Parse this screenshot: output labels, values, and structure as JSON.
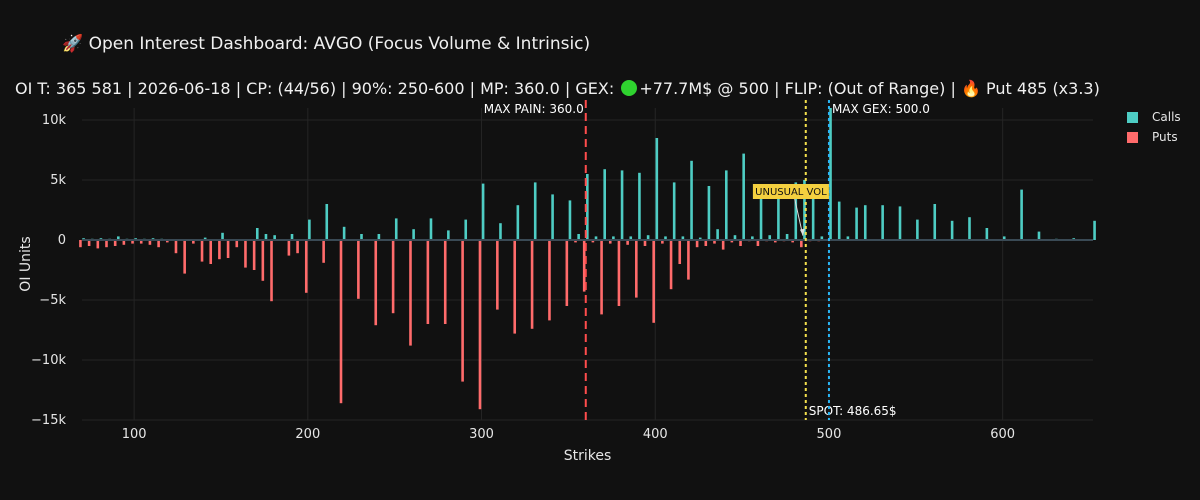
{
  "title": "🚀 Open Interest Dashboard: AVGO (Focus Volume & Intrinsic)",
  "subtitle": {
    "before": "OI T: 365 581 | 2026-06-18 | CP: (44/56) | 90%: 250-600 | MP: 360.0 | GEX:",
    "after": "+77.7M$ @ 500 | FLIP: (Out of Range) | 🔥 Put 485 (x3.3)"
  },
  "colors": {
    "calls": "#4ecdc4",
    "puts": "#ff6b6b",
    "max_pain": "#ff4d4d",
    "spot": "#f4e04d",
    "max_gex": "#29b6f6",
    "unusual_bg": "#f4d03f"
  },
  "legend": [
    {
      "label": "Calls",
      "color": "#4ecdc4"
    },
    {
      "label": "Puts",
      "color": "#ff6b6b"
    }
  ],
  "chart_data": {
    "type": "bar",
    "xlabel": "Strikes",
    "ylabel": "OI Units",
    "xlim": [
      70,
      652
    ],
    "ylim": [
      -15000,
      11000
    ],
    "xticks": [
      100,
      200,
      300,
      400,
      500,
      600
    ],
    "yticks": [
      {
        "v": 10000,
        "label": "10k"
      },
      {
        "v": 5000,
        "label": "5k"
      },
      {
        "v": 0,
        "label": "0"
      },
      {
        "v": -5000,
        "label": "−5k"
      },
      {
        "v": -10000,
        "label": "−10k"
      },
      {
        "v": -15000,
        "label": "−15k"
      }
    ],
    "grid": true,
    "legend_position": "top-right",
    "series": [
      {
        "name": "Calls",
        "points": [
          [
            70,
            150
          ],
          [
            75,
            100
          ],
          [
            80,
            150
          ],
          [
            85,
            100
          ],
          [
            90,
            300
          ],
          [
            95,
            100
          ],
          [
            100,
            150
          ],
          [
            105,
            100
          ],
          [
            110,
            150
          ],
          [
            115,
            100
          ],
          [
            140,
            200
          ],
          [
            150,
            600
          ],
          [
            170,
            1000
          ],
          [
            175,
            500
          ],
          [
            180,
            400
          ],
          [
            190,
            500
          ],
          [
            200,
            1700
          ],
          [
            210,
            3000
          ],
          [
            220,
            1100
          ],
          [
            230,
            500
          ],
          [
            240,
            500
          ],
          [
            250,
            1800
          ],
          [
            260,
            900
          ],
          [
            270,
            1800
          ],
          [
            280,
            800
          ],
          [
            290,
            1700
          ],
          [
            300,
            4700
          ],
          [
            310,
            1400
          ],
          [
            320,
            2900
          ],
          [
            330,
            4800
          ],
          [
            340,
            3800
          ],
          [
            350,
            3300
          ],
          [
            355,
            500
          ],
          [
            360,
            5500
          ],
          [
            365,
            300
          ],
          [
            370,
            5900
          ],
          [
            375,
            300
          ],
          [
            380,
            5800
          ],
          [
            385,
            300
          ],
          [
            390,
            5600
          ],
          [
            395,
            400
          ],
          [
            400,
            8500
          ],
          [
            405,
            300
          ],
          [
            410,
            4800
          ],
          [
            415,
            300
          ],
          [
            420,
            6600
          ],
          [
            425,
            200
          ],
          [
            430,
            4500
          ],
          [
            435,
            900
          ],
          [
            440,
            5800
          ],
          [
            445,
            400
          ],
          [
            450,
            7200
          ],
          [
            455,
            300
          ],
          [
            460,
            4600
          ],
          [
            465,
            400
          ],
          [
            470,
            4000
          ],
          [
            475,
            500
          ],
          [
            480,
            4800
          ],
          [
            485,
            5000
          ],
          [
            490,
            4200
          ],
          [
            495,
            300
          ],
          [
            500,
            11000
          ],
          [
            505,
            3200
          ],
          [
            510,
            300
          ],
          [
            515,
            2700
          ],
          [
            520,
            2900
          ],
          [
            530,
            2900
          ],
          [
            540,
            2800
          ],
          [
            550,
            1700
          ],
          [
            560,
            3000
          ],
          [
            570,
            1600
          ],
          [
            580,
            1900
          ],
          [
            590,
            1000
          ],
          [
            600,
            300
          ],
          [
            610,
            4200
          ],
          [
            620,
            700
          ],
          [
            630,
            100
          ],
          [
            640,
            150
          ],
          [
            652,
            1600
          ]
        ]
      },
      {
        "name": "Puts",
        "points": [
          [
            70,
            -600
          ],
          [
            75,
            -500
          ],
          [
            80,
            -700
          ],
          [
            85,
            -600
          ],
          [
            90,
            -500
          ],
          [
            95,
            -400
          ],
          [
            100,
            -300
          ],
          [
            105,
            -300
          ],
          [
            110,
            -400
          ],
          [
            115,
            -600
          ],
          [
            120,
            -200
          ],
          [
            125,
            -1100
          ],
          [
            130,
            -2800
          ],
          [
            135,
            -300
          ],
          [
            140,
            -1800
          ],
          [
            145,
            -2000
          ],
          [
            150,
            -1600
          ],
          [
            155,
            -1500
          ],
          [
            160,
            -600
          ],
          [
            165,
            -2300
          ],
          [
            170,
            -2500
          ],
          [
            175,
            -3400
          ],
          [
            180,
            -5100
          ],
          [
            190,
            -1300
          ],
          [
            195,
            -1100
          ],
          [
            200,
            -4400
          ],
          [
            210,
            -1900
          ],
          [
            220,
            -13600
          ],
          [
            230,
            -4900
          ],
          [
            240,
            -7100
          ],
          [
            250,
            -6100
          ],
          [
            260,
            -8800
          ],
          [
            270,
            -7000
          ],
          [
            280,
            -7000
          ],
          [
            290,
            -11800
          ],
          [
            300,
            -14100
          ],
          [
            310,
            -5800
          ],
          [
            320,
            -7800
          ],
          [
            330,
            -7400
          ],
          [
            340,
            -6700
          ],
          [
            350,
            -5500
          ],
          [
            355,
            -200
          ],
          [
            360,
            -4300
          ],
          [
            365,
            -200
          ],
          [
            370,
            -6200
          ],
          [
            375,
            -300
          ],
          [
            380,
            -5500
          ],
          [
            385,
            -400
          ],
          [
            390,
            -4800
          ],
          [
            395,
            -500
          ],
          [
            400,
            -6900
          ],
          [
            405,
            -300
          ],
          [
            410,
            -4100
          ],
          [
            415,
            -2000
          ],
          [
            420,
            -3300
          ],
          [
            425,
            -600
          ],
          [
            430,
            -500
          ],
          [
            435,
            -300
          ],
          [
            440,
            -800
          ],
          [
            445,
            -200
          ],
          [
            450,
            -500
          ],
          [
            455,
            -100
          ],
          [
            460,
            -500
          ],
          [
            465,
            -100
          ],
          [
            470,
            -200
          ],
          [
            475,
            -100
          ],
          [
            480,
            -200
          ],
          [
            485,
            -600
          ],
          [
            490,
            -100
          ],
          [
            495,
            -100
          ]
        ]
      }
    ],
    "annotations": {
      "max_pain": {
        "x": 360,
        "label": "MAX PAIN: 360.0"
      },
      "spot": {
        "x": 486.65,
        "label": "SPOT: 486.65$"
      },
      "max_gex": {
        "x": 500,
        "label": "MAX GEX: 500.0"
      },
      "unusual": {
        "x": 485,
        "y": 200,
        "label": "UNUSUAL VOL"
      }
    }
  }
}
